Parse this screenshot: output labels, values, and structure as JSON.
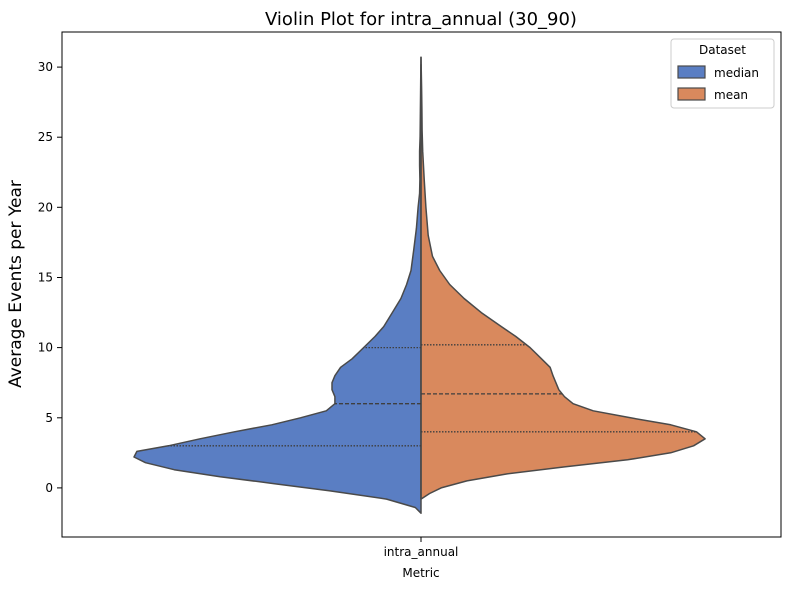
{
  "chart_data": {
    "type": "violin",
    "title": "Violin Plot for intra_annual (30_90)",
    "xlabel": "Metric",
    "ylabel": "Average Events per Year",
    "categories": [
      "intra_annual"
    ],
    "ylim": [
      -3.5,
      32.5
    ],
    "yticks": [
      0,
      5,
      10,
      15,
      20,
      25,
      30
    ],
    "grid": false,
    "split": true,
    "legend": {
      "title": "Dataset",
      "placement": "top-right",
      "entries": [
        "median",
        "mean"
      ]
    },
    "series": [
      {
        "name": "median",
        "color": "#5a7ec3",
        "side": "left",
        "quartiles": {
          "q1": 3.0,
          "median": 6.0,
          "q3": 10.0
        },
        "density": [
          [
            -1.8,
            0.0
          ],
          [
            -1.4,
            0.02
          ],
          [
            -0.8,
            0.12
          ],
          [
            -0.2,
            0.32
          ],
          [
            0.3,
            0.51
          ],
          [
            0.8,
            0.7
          ],
          [
            1.3,
            0.86
          ],
          [
            1.8,
            0.96
          ],
          [
            2.2,
            1.0
          ],
          [
            2.6,
            0.99
          ],
          [
            3.0,
            0.88
          ],
          [
            3.5,
            0.77
          ],
          [
            4.0,
            0.65
          ],
          [
            4.5,
            0.52
          ],
          [
            5.0,
            0.42
          ],
          [
            5.5,
            0.33
          ],
          [
            6.0,
            0.3
          ],
          [
            6.5,
            0.3
          ],
          [
            7.0,
            0.31
          ],
          [
            7.5,
            0.31
          ],
          [
            8.0,
            0.3
          ],
          [
            8.6,
            0.28
          ],
          [
            9.2,
            0.24
          ],
          [
            10.0,
            0.2
          ],
          [
            10.8,
            0.16
          ],
          [
            11.5,
            0.13
          ],
          [
            12.5,
            0.1
          ],
          [
            13.5,
            0.07
          ],
          [
            14.5,
            0.05
          ],
          [
            15.5,
            0.035
          ],
          [
            17.0,
            0.025
          ],
          [
            18.5,
            0.016
          ],
          [
            20.0,
            0.01
          ],
          [
            21.0,
            0.005
          ],
          [
            22.0,
            0.004
          ],
          [
            23.0,
            0.005
          ],
          [
            24.0,
            0.005
          ],
          [
            25.0,
            0.003
          ],
          [
            27.0,
            0.002
          ],
          [
            29.0,
            0.001
          ],
          [
            30.7,
            0.0
          ]
        ]
      },
      {
        "name": "mean",
        "color": "#d9895d",
        "side": "right",
        "quartiles": {
          "q1": 4.0,
          "median": 6.7,
          "q3": 10.2
        },
        "density": [
          [
            -0.8,
            0.0
          ],
          [
            -0.4,
            0.03
          ],
          [
            0.0,
            0.07
          ],
          [
            0.5,
            0.16
          ],
          [
            1.0,
            0.3
          ],
          [
            1.5,
            0.5
          ],
          [
            2.0,
            0.72
          ],
          [
            2.5,
            0.87
          ],
          [
            3.0,
            0.95
          ],
          [
            3.5,
            0.99
          ],
          [
            4.0,
            0.96
          ],
          [
            4.5,
            0.87
          ],
          [
            5.0,
            0.73
          ],
          [
            5.5,
            0.6
          ],
          [
            6.0,
            0.53
          ],
          [
            6.5,
            0.5
          ],
          [
            7.0,
            0.48
          ],
          [
            7.5,
            0.47
          ],
          [
            8.0,
            0.46
          ],
          [
            8.6,
            0.45
          ],
          [
            9.2,
            0.42
          ],
          [
            10.0,
            0.38
          ],
          [
            10.8,
            0.33
          ],
          [
            11.5,
            0.28
          ],
          [
            12.5,
            0.21
          ],
          [
            13.5,
            0.15
          ],
          [
            14.5,
            0.1
          ],
          [
            15.5,
            0.065
          ],
          [
            16.5,
            0.04
          ],
          [
            18.0,
            0.025
          ],
          [
            20.0,
            0.017
          ],
          [
            22.0,
            0.011
          ],
          [
            24.0,
            0.006
          ],
          [
            25.5,
            0.004
          ],
          [
            27.0,
            0.003
          ],
          [
            28.5,
            0.002
          ],
          [
            30.7,
            0.0
          ]
        ]
      }
    ]
  }
}
